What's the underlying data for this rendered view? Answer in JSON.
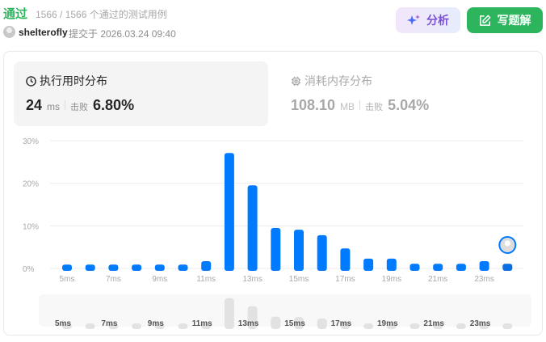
{
  "header": {
    "status": "通过",
    "cases": "1566 / 1566 个通过的测试用例",
    "user": "shelterofly",
    "submitted": "提交于 2026.03.24 09:40",
    "analyze_label": "分析",
    "write_label": "写题解"
  },
  "runtime": {
    "title": "执行用时分布",
    "value": "24",
    "unit": "ms",
    "beats_label": "击败",
    "beats": "6.80%"
  },
  "memory": {
    "title": "消耗内存分布",
    "value": "108.10",
    "unit": "MB",
    "beats_label": "击败",
    "beats": "5.04%"
  },
  "colors": {
    "accent": "#007aff",
    "success": "#2db55d",
    "highlight_bar": "#0a6fe0"
  },
  "chart_data": {
    "type": "bar",
    "categories": [
      "5ms",
      "6ms",
      "7ms",
      "8ms",
      "9ms",
      "10ms",
      "11ms",
      "12ms",
      "13ms",
      "14ms",
      "15ms",
      "16ms",
      "17ms",
      "18ms",
      "19ms",
      "20ms",
      "21ms",
      "22ms",
      "23ms",
      "24ms"
    ],
    "tick_labels": [
      "5ms",
      "7ms",
      "9ms",
      "11ms",
      "13ms",
      "15ms",
      "17ms",
      "19ms",
      "21ms",
      "23ms"
    ],
    "values": [
      0.9,
      0.9,
      0.9,
      0.9,
      0.9,
      0.9,
      1.7,
      27.1,
      19.5,
      9.5,
      9.1,
      7.8,
      4.7,
      2.3,
      2.3,
      1.1,
      1.1,
      1.1,
      1.7,
      1.1
    ],
    "y_ticks": [
      "0%",
      "10%",
      "20%",
      "30%"
    ],
    "ylim": [
      0,
      30
    ],
    "unit": "%",
    "grid": true,
    "highlighted_category": "24ms"
  }
}
